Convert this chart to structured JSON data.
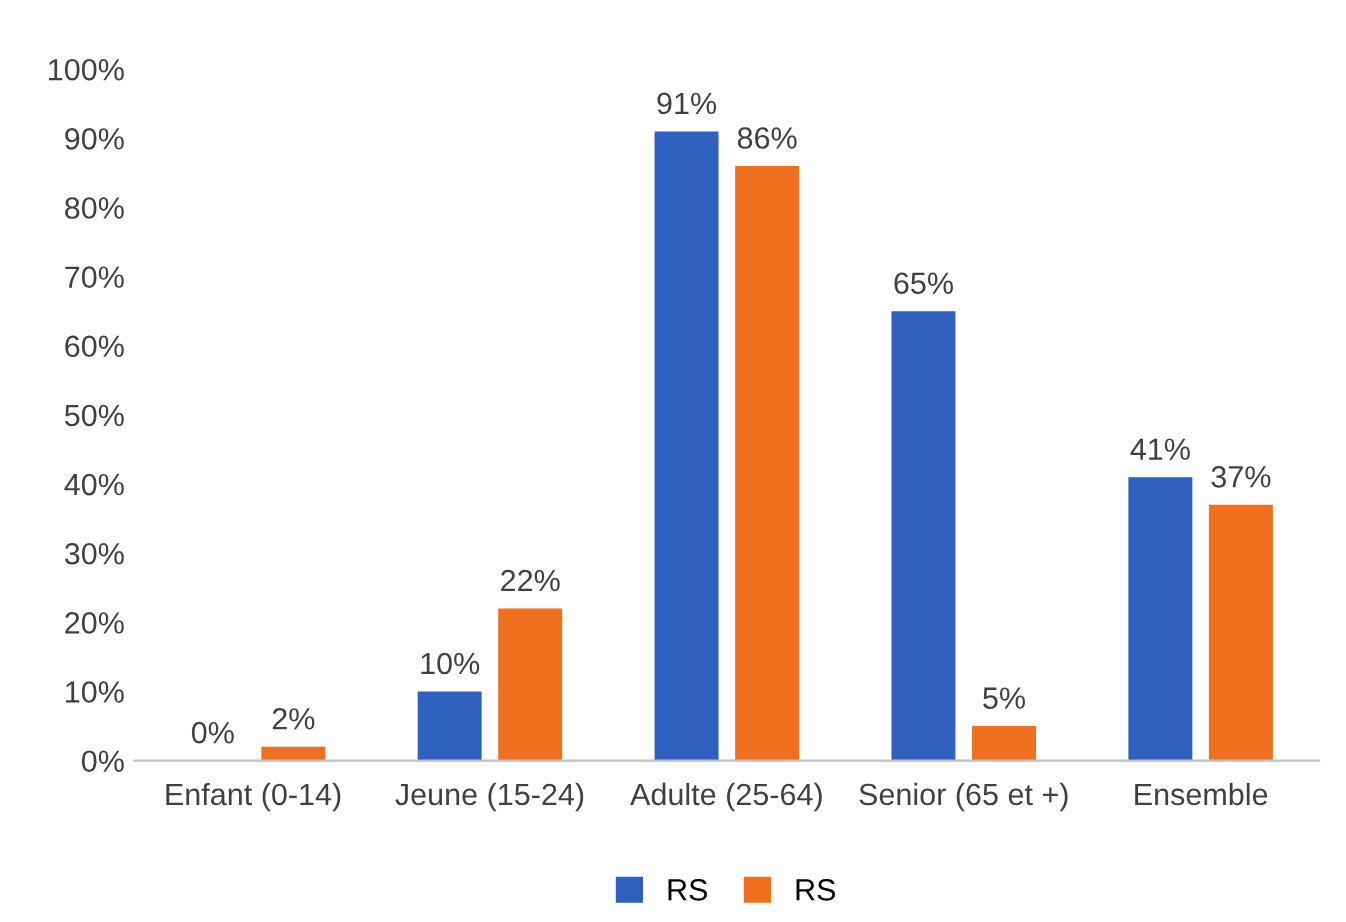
{
  "chart_data": {
    "type": "bar",
    "categories": [
      "Enfant (0-14)",
      "Jeune (15-24)",
      "Adulte (25-64)",
      "Senior (65 et +)",
      "Ensemble"
    ],
    "series": [
      {
        "name": "RS",
        "color": "#3060c0",
        "values": [
          0,
          10,
          91,
          65,
          41
        ]
      },
      {
        "name": "RS",
        "color": "#f07020",
        "values": [
          2,
          22,
          86,
          5,
          37
        ]
      }
    ],
    "ylim": [
      0,
      100
    ],
    "yticks": [
      {
        "value": 0,
        "label": "0%"
      },
      {
        "value": 10,
        "label": "10%"
      },
      {
        "value": 20,
        "label": "20%"
      },
      {
        "value": 30,
        "label": "30%"
      },
      {
        "value": 40,
        "label": "40%"
      },
      {
        "value": 50,
        "label": "50%"
      },
      {
        "value": 60,
        "label": "60%"
      },
      {
        "value": 70,
        "label": "70%"
      },
      {
        "value": 80,
        "label": "80%"
      },
      {
        "value": 90,
        "label": "90%"
      },
      {
        "value": 100,
        "label": "100%"
      }
    ],
    "value_labels": [
      [
        "0%",
        "10%",
        "91%",
        "65%",
        "41%"
      ],
      [
        "2%",
        "22%",
        "86%",
        "5%",
        "37%"
      ]
    ],
    "grid": false,
    "legend": "bottom"
  }
}
